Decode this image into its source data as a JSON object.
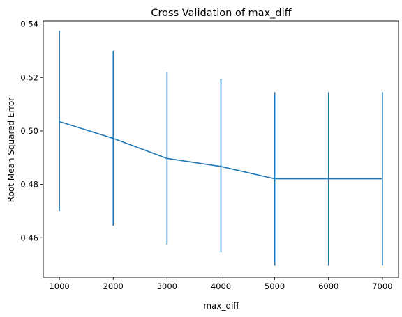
{
  "chart_data": {
    "type": "line",
    "title": "Cross Validation of max_diff",
    "xlabel": "max_diff",
    "ylabel": "Root Mean Squared Error",
    "x": [
      1000,
      2000,
      3000,
      4000,
      5000,
      6000,
      7000
    ],
    "series": [
      {
        "values": [
          0.5035,
          0.4972,
          0.4897,
          0.4867,
          0.4821,
          0.4821,
          0.4821
        ],
        "error_upper": [
          0.5375,
          0.53,
          0.522,
          0.5195,
          0.5145,
          0.5145,
          0.5145
        ],
        "error_lower": [
          0.47,
          0.4645,
          0.4575,
          0.4545,
          0.4495,
          0.4495,
          0.4495
        ],
        "color": "#1f77b4"
      }
    ],
    "xticks": [
      "1000",
      "2000",
      "3000",
      "4000",
      "5000",
      "6000",
      "7000"
    ],
    "yticks": [
      "0.46",
      "0.48",
      "0.50",
      "0.52",
      "0.54"
    ],
    "xlim": [
      700,
      7300
    ],
    "ylim": [
      0.4452,
      0.5412
    ],
    "grid": false,
    "legend": "none"
  }
}
